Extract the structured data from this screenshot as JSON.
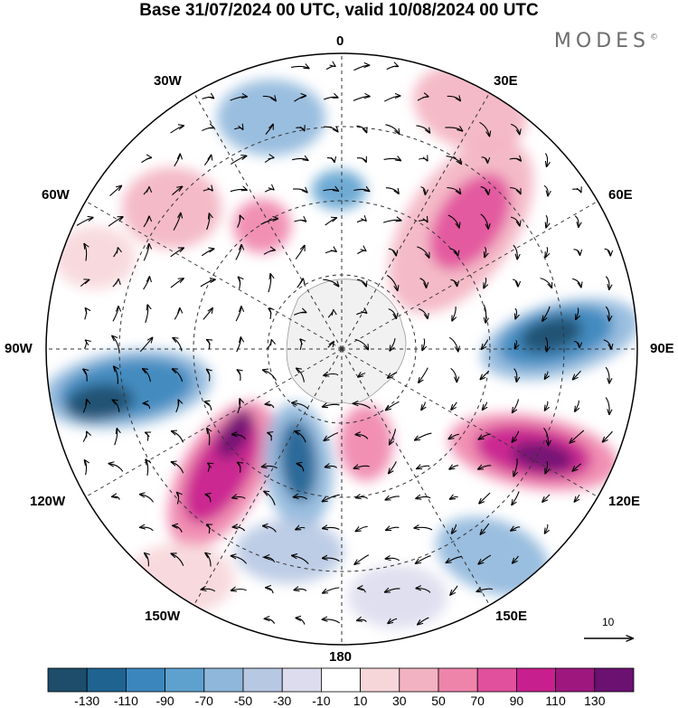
{
  "header": {
    "title": "Base 31/07/2024 00 UTC, valid 10/08/2024 00 UTC",
    "brand": "MODES",
    "brand_mark": "©"
  },
  "map": {
    "projection": "south-polar-stereographic",
    "longitude_labels": {
      "lon_0": "0",
      "lon_30e": "30E",
      "lon_60e": "60E",
      "lon_90e": "90E",
      "lon_120e": "120E",
      "lon_150e": "150E",
      "lon_180": "180",
      "lon_150w": "150W",
      "lon_120w": "120W",
      "lon_90w": "90W",
      "lon_60w": "60W",
      "lon_30w": "30W"
    },
    "reference_vector_label": "10",
    "arrow_color": "#000000",
    "land_color": "#f0f0f0"
  },
  "colorbar": {
    "colors": [
      "#1d4d6b",
      "#1f6391",
      "#3b87bd",
      "#5ea1cf",
      "#8fb7dc",
      "#b7c8e3",
      "#dcdcee",
      "#ffffff",
      "#f7d6da",
      "#f3b2c1",
      "#ef84ab",
      "#e1509c",
      "#c81f8e",
      "#9e177f",
      "#6b1172"
    ],
    "tick_labels": [
      "-130",
      "-110",
      "-90",
      "-70",
      "-50",
      "-30",
      "-10",
      "10",
      "30",
      "50",
      "70",
      "90",
      "110",
      "130"
    ]
  }
}
